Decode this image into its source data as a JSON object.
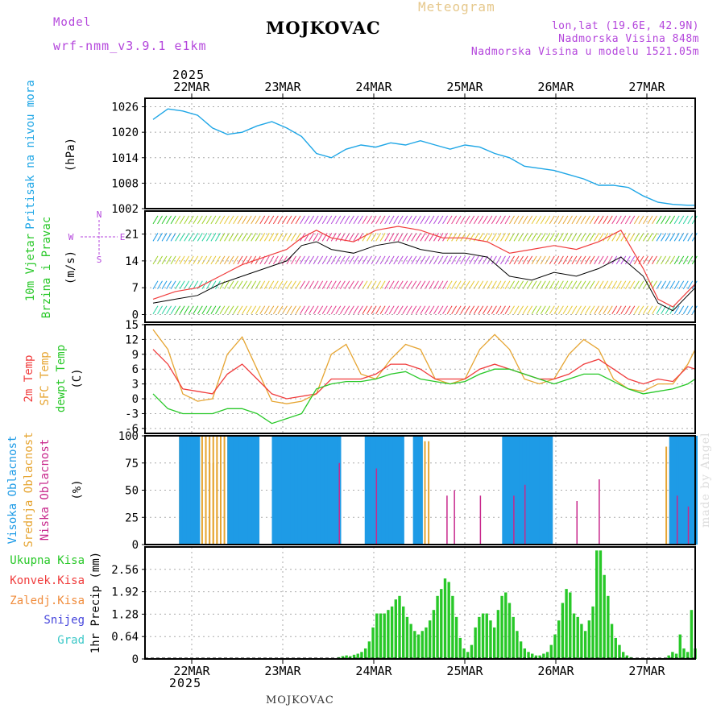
{
  "header": {
    "model_label": "Model",
    "model_name": "wrf-nmm_v3.9.1 e1km",
    "station": "MOJKOVAC",
    "product": "Meteogram",
    "lonlat": "lon,lat (19.6E, 42.9N)",
    "elevation": "Nadmorska Visina 848m",
    "model_elevation": "Nadmorska Visina u modelu 1521.05m",
    "year_top": "2025",
    "year_bottom": "2025",
    "footer_station": "MOJKOVAC",
    "watermark": "made by Angel"
  },
  "colors": {
    "pressure": "#1ea6e6",
    "temp2m": "#f03c3c",
    "sfc_temp": "#e6a532",
    "dewpt": "#28c828",
    "cloud_high": "#1e9be6",
    "cloud_mid": "#e6a532",
    "cloud_low": "#c8288c",
    "precip": "#28c828",
    "label_purple": "#b446dc",
    "grid": "#aaaaaa"
  },
  "chart_data": [
    {
      "type": "line",
      "id": "pressure",
      "ylabel_left": "Pritisak na nivou mora",
      "ylabel_unit": "(hPa)",
      "yticks": [
        1026,
        1020,
        1014,
        1008,
        1002
      ],
      "ylim": [
        1002,
        1028
      ],
      "x_days": [
        "22MAR",
        "23MAR",
        "24MAR",
        "25MAR",
        "26MAR",
        "27MAR"
      ],
      "x_hours": [
        0,
        4,
        8,
        12,
        16,
        20,
        24,
        28,
        32,
        36,
        40,
        44,
        48,
        52,
        56,
        60,
        64,
        68,
        72,
        76,
        80,
        84,
        88,
        92,
        96,
        100,
        104,
        108,
        112,
        116,
        120,
        124,
        128,
        132,
        136,
        140,
        144,
        146
      ],
      "values": [
        1023,
        1025.5,
        1025,
        1024,
        1021,
        1019.5,
        1020,
        1021.5,
        1022.5,
        1021,
        1019,
        1015,
        1014,
        1016,
        1017,
        1016.5,
        1017.5,
        1017,
        1018,
        1017,
        1016,
        1017,
        1016.5,
        1015,
        1014,
        1012,
        1011.5,
        1011,
        1010,
        1009,
        1007.5,
        1007.5,
        1007,
        1005,
        1003.5,
        1003,
        1002.8,
        1002.8
      ]
    },
    {
      "type": "line",
      "id": "wind",
      "ylabel_left_1": "10m Vjetar",
      "ylabel_left_2": "Brzina i Pravac",
      "ylabel_unit": "(m/s)",
      "compass": [
        "N",
        "S",
        "E",
        "W"
      ],
      "yticks": [
        0,
        7,
        14,
        21
      ],
      "ylim": [
        -2,
        27
      ],
      "x_hours": [
        0,
        6,
        12,
        18,
        24,
        30,
        36,
        40,
        44,
        48,
        54,
        60,
        66,
        72,
        78,
        84,
        90,
        96,
        102,
        108,
        114,
        120,
        126,
        132,
        136,
        140,
        146
      ],
      "speed": [
        3,
        4,
        5,
        8,
        10,
        12,
        14,
        18,
        19,
        17,
        16,
        18,
        19,
        17,
        16,
        16,
        15,
        10,
        9,
        11,
        10,
        12,
        15,
        10,
        3,
        1,
        7
      ],
      "gust": [
        4,
        6,
        7,
        10,
        13,
        15,
        17,
        20,
        22,
        20,
        19,
        22,
        23,
        22,
        20,
        20,
        19,
        16,
        17,
        18,
        17,
        19,
        22,
        12,
        4,
        2,
        8
      ]
    },
    {
      "type": "line",
      "id": "temperature",
      "ylabel_left_1": "2m Temp",
      "ylabel_left_2": "SFC Temp",
      "ylabel_left_3": "dewpt Temp",
      "ylabel_unit": "(C)",
      "yticks": [
        15,
        12,
        9,
        6,
        3,
        0,
        -3,
        -6
      ],
      "ylim": [
        -7,
        15
      ],
      "x_hours": [
        0,
        4,
        8,
        12,
        16,
        20,
        24,
        28,
        32,
        36,
        40,
        44,
        48,
        52,
        56,
        60,
        64,
        68,
        72,
        76,
        80,
        84,
        88,
        92,
        96,
        100,
        104,
        108,
        112,
        116,
        120,
        124,
        128,
        132,
        136,
        140,
        144,
        146
      ],
      "series": [
        {
          "name": "2m Temp",
          "values": [
            10,
            7,
            2,
            1.5,
            1,
            5,
            7,
            4,
            1,
            0,
            0.5,
            1,
            4,
            4,
            4,
            5,
            7,
            7,
            6,
            4,
            4,
            4,
            6,
            7,
            6,
            5,
            4,
            4,
            5,
            7,
            8,
            6,
            4,
            3,
            4,
            3.5,
            6.5,
            6
          ]
        },
        {
          "name": "SFC Temp",
          "values": [
            14,
            10,
            1,
            -0.5,
            0,
            9,
            12.5,
            6,
            -0.5,
            -1,
            -0.5,
            1,
            9,
            11,
            5,
            4,
            8,
            11,
            10,
            4,
            3,
            4,
            10,
            13,
            10,
            4,
            3,
            4,
            9,
            12,
            10,
            4,
            2,
            1.5,
            3,
            3,
            7,
            10
          ]
        },
        {
          "name": "dewpt Temp",
          "values": [
            1,
            -2,
            -3,
            -3,
            -3,
            -2,
            -2,
            -3,
            -5,
            -4,
            -3,
            2,
            3,
            3.5,
            3.5,
            4,
            5,
            5.5,
            4,
            3.5,
            3,
            3.5,
            5,
            6,
            6,
            5,
            4,
            3,
            4,
            5,
            5,
            3.5,
            2,
            1,
            1.5,
            2,
            3,
            4
          ]
        }
      ]
    },
    {
      "type": "bar",
      "id": "cloud",
      "ylabel_left_1": "Visoka Oblacnost",
      "ylabel_left_2": "Srednja Oblacnost",
      "ylabel_left_3": "Niska Oblacnost",
      "ylabel_unit": "(%)",
      "yticks": [
        100,
        75,
        50,
        25,
        0
      ],
      "ylim": [
        0,
        100
      ],
      "high": [
        [
          7,
          12,
          100
        ],
        [
          20,
          28,
          100
        ],
        [
          32,
          50,
          100
        ],
        [
          57,
          67,
          100
        ],
        [
          70,
          72,
          100
        ],
        [
          94,
          107,
          100
        ],
        [
          139,
          146,
          100
        ]
      ],
      "mid": [
        [
          7,
          20,
          100
        ],
        [
          15,
          17,
          75
        ],
        [
          34,
          48,
          100
        ],
        [
          60,
          66,
          100
        ],
        [
          72,
          74,
          95
        ],
        [
          138,
          146,
          90
        ]
      ],
      "low": [
        [
          50,
          51,
          75
        ],
        [
          60,
          61,
          70
        ],
        [
          79,
          80,
          45
        ],
        [
          81,
          82,
          50
        ],
        [
          88,
          89,
          45
        ],
        [
          97,
          98,
          45
        ],
        [
          100,
          101,
          55
        ],
        [
          114,
          115,
          40
        ],
        [
          120,
          121,
          60
        ],
        [
          141,
          142,
          45
        ],
        [
          144,
          145,
          35
        ]
      ]
    },
    {
      "type": "bar",
      "id": "precip",
      "legend": [
        "Ukupna Kisa",
        "Konvek.Kisa",
        "Zaledj.Kisa",
        "Snijeg",
        "Grad"
      ],
      "legend_colors": [
        "#28c828",
        "#f03c3c",
        "#f08c3c",
        "#4646dc",
        "#3cc8c8"
      ],
      "ylabel_unit": "1hr Precip (mm)",
      "yticks": [
        2.56,
        1.92,
        1.28,
        0.64,
        0
      ],
      "ylim": [
        0,
        3.2
      ],
      "bars": [
        0,
        0,
        0,
        0,
        0,
        0,
        0,
        0,
        0,
        0,
        0,
        0,
        0,
        0,
        0,
        0,
        0,
        0,
        0,
        0,
        0,
        0,
        0,
        0,
        0,
        0,
        0,
        0,
        0,
        0,
        0,
        0,
        0,
        0,
        0,
        0,
        0,
        0,
        0,
        0,
        0,
        0,
        0,
        0,
        0,
        0,
        0,
        0,
        0.02,
        0.05,
        0.08,
        0.1,
        0.08,
        0.12,
        0.15,
        0.2,
        0.3,
        0.5,
        0.9,
        1.3,
        1.3,
        1.3,
        1.4,
        1.5,
        1.7,
        1.8,
        1.5,
        1.2,
        1.0,
        0.8,
        0.7,
        0.8,
        0.9,
        1.1,
        1.4,
        1.8,
        2.0,
        2.3,
        2.2,
        1.8,
        1.2,
        0.6,
        0.3,
        0.2,
        0.4,
        0.9,
        1.2,
        1.3,
        1.3,
        1.1,
        0.9,
        1.4,
        1.8,
        1.9,
        1.6,
        1.2,
        0.8,
        0.5,
        0.3,
        0.2,
        0.15,
        0.1,
        0.1,
        0.15,
        0.2,
        0.4,
        0.7,
        1.1,
        1.6,
        2.0,
        1.9,
        1.3,
        1.2,
        1.0,
        0.8,
        1.1,
        1.5,
        3.1,
        3.1,
        2.4,
        1.8,
        1.0,
        0.6,
        0.4,
        0.2,
        0.1,
        0.05,
        0.02,
        0,
        0,
        0,
        0,
        0,
        0,
        0,
        0,
        0.1,
        0.2,
        0.15,
        0.7,
        0.3,
        0.2,
        1.4,
        0.3
      ]
    }
  ]
}
